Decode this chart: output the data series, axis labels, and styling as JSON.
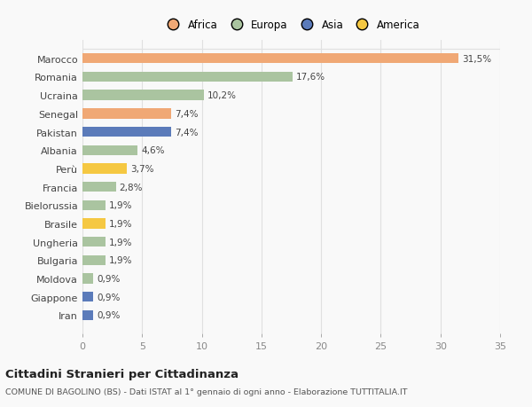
{
  "countries": [
    "Iran",
    "Giappone",
    "Moldova",
    "Bulgaria",
    "Ungheria",
    "Brasile",
    "Bielorussia",
    "Francia",
    "Perù",
    "Albania",
    "Pakistan",
    "Senegal",
    "Ucraina",
    "Romania",
    "Marocco"
  ],
  "values": [
    0.9,
    0.9,
    0.9,
    1.9,
    1.9,
    1.9,
    1.9,
    2.8,
    3.7,
    4.6,
    7.4,
    7.4,
    10.2,
    17.6,
    31.5
  ],
  "labels": [
    "0,9%",
    "0,9%",
    "0,9%",
    "1,9%",
    "1,9%",
    "1,9%",
    "1,9%",
    "2,8%",
    "3,7%",
    "4,6%",
    "7,4%",
    "7,4%",
    "10,2%",
    "17,6%",
    "31,5%"
  ],
  "colors": [
    "#5b7bba",
    "#5b7bba",
    "#aac4a0",
    "#aac4a0",
    "#aac4a0",
    "#f5c842",
    "#aac4a0",
    "#aac4a0",
    "#f5c842",
    "#aac4a0",
    "#5b7bba",
    "#f0a875",
    "#aac4a0",
    "#aac4a0",
    "#f0a875"
  ],
  "legend": {
    "Africa": "#f0a875",
    "Europa": "#aac4a0",
    "Asia": "#5b7bba",
    "America": "#f5c842"
  },
  "title": "Cittadini Stranieri per Cittadinanza",
  "subtitle": "COMUNE DI BAGOLINO (BS) - Dati ISTAT al 1° gennaio di ogni anno - Elaborazione TUTTITALIA.IT",
  "xlim": [
    0,
    35
  ],
  "xticks": [
    0,
    5,
    10,
    15,
    20,
    25,
    30,
    35
  ],
  "background_color": "#f9f9f9",
  "grid_color": "#e0e0e0",
  "bar_height": 0.55
}
